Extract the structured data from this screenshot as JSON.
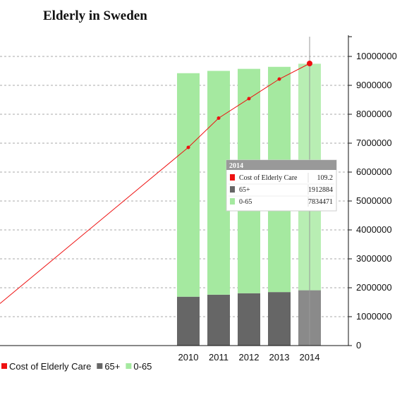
{
  "chart_data": {
    "type": "bar",
    "title": "Elderly in Sweden",
    "categories": [
      "2010",
      "2011",
      "2012",
      "2013",
      "2014"
    ],
    "series": [
      {
        "name": "65+",
        "kind": "bar",
        "stack": 0,
        "color": "#666666",
        "values": [
          1690000,
          1760000,
          1810000,
          1850000,
          1912884
        ]
      },
      {
        "name": "0-65",
        "kind": "bar",
        "stack": 1,
        "color": "#a5e9a0",
        "values": [
          7730000,
          7740000,
          7760000,
          7790000,
          7834471
        ]
      },
      {
        "name": "Cost of Elderly Care",
        "kind": "line",
        "color": "#ee1111",
        "values": [
          92,
          98,
          102,
          106,
          109.2
        ]
      }
    ],
    "line_origin_value": 60,
    "y_axis": {
      "position": "right",
      "min": 0,
      "max": 10000000,
      "ticks": [
        "0",
        "1000000",
        "2000000",
        "3000000",
        "4000000",
        "5000000",
        "6000000",
        "7000000",
        "8000000",
        "9000000",
        "10000000"
      ]
    },
    "grid": true,
    "legend": {
      "placement": "bottom-left",
      "items": [
        {
          "label": "Cost of Elderly Care",
          "color": "#ee1111"
        },
        {
          "label": "65+",
          "color": "#666666"
        },
        {
          "label": "0-65",
          "color": "#a5e9a0"
        }
      ]
    },
    "tooltip": {
      "category": "2014",
      "rows": [
        {
          "label": "Cost of Elderly Care",
          "value": "109.2",
          "color": "#ee1111"
        },
        {
          "label": "65+",
          "value": "1912884",
          "color": "#666666"
        },
        {
          "label": "0-65",
          "value": "7834471",
          "color": "#a5e9a0"
        }
      ]
    }
  }
}
